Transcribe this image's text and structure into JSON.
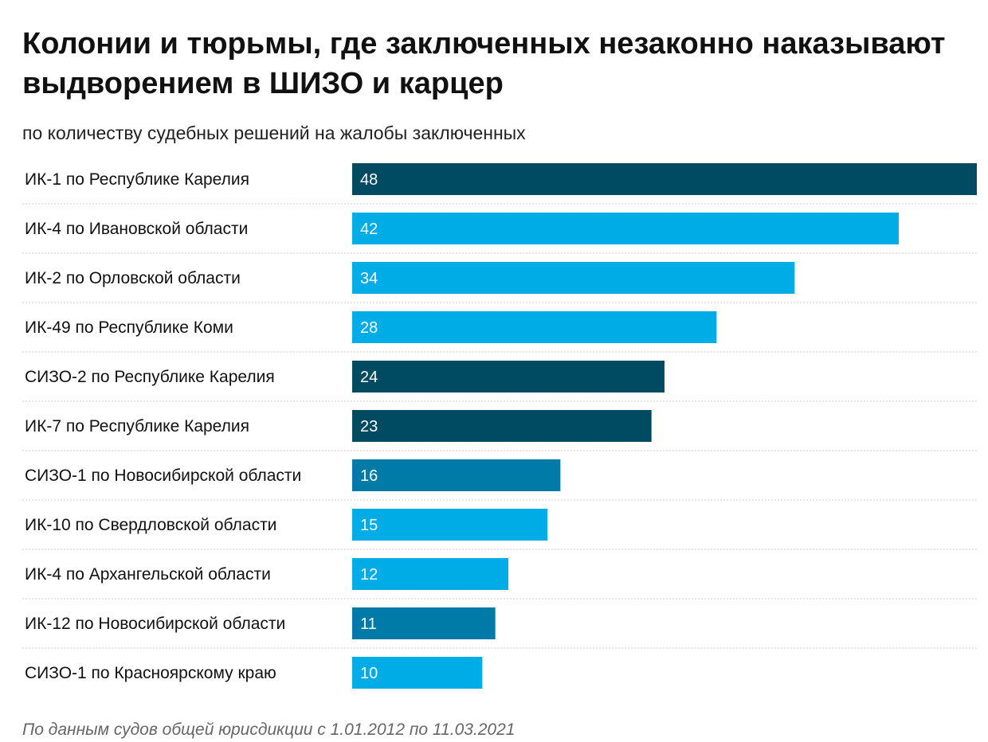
{
  "title": "Колонии и тюрьмы, где заключенных незаконно наказывают выдворением в ШИЗО и карцер",
  "subtitle": "по количеству судебных решений на жалобы заключенных",
  "footnote": "По данным судов общей юрисдикции с 1.01.2012 по 11.03.2021",
  "colors": {
    "dark": "#004a62",
    "light": "#00ace6",
    "medium": "#007aa6",
    "separator": "#c8c8c8"
  },
  "chart_data": {
    "type": "bar",
    "orientation": "horizontal",
    "title": "Колонии и тюрьмы, где заключенных незаконно наказывают выдворением в ШИЗО и карцер",
    "subtitle": "по количеству судебных решений на жалобы заключенных",
    "categories": [
      "ИК-1 по Республике Карелия",
      "ИК-4 по Ивановской области",
      "ИК-2 по Орловской области",
      "ИК-49 по Республике Коми",
      "СИЗО-2 по Республике Карелия",
      "ИК-7 по Республике Карелия",
      "СИЗО-1 по Новосибирской области",
      "ИК-10 по Свердловской области",
      "ИК-4 по Архангельской области",
      "ИК-12 по Новосибирской области",
      "СИЗО-1 по Красноярскому краю"
    ],
    "values": [
      48,
      42,
      34,
      28,
      24,
      23,
      16,
      15,
      12,
      11,
      10
    ],
    "bar_colors": [
      "dark",
      "light",
      "light",
      "light",
      "dark",
      "dark",
      "medium",
      "light",
      "light",
      "medium",
      "light"
    ],
    "xlim": [
      0,
      48
    ],
    "grid": false,
    "legend": "none",
    "data_labels": "inside-left"
  }
}
